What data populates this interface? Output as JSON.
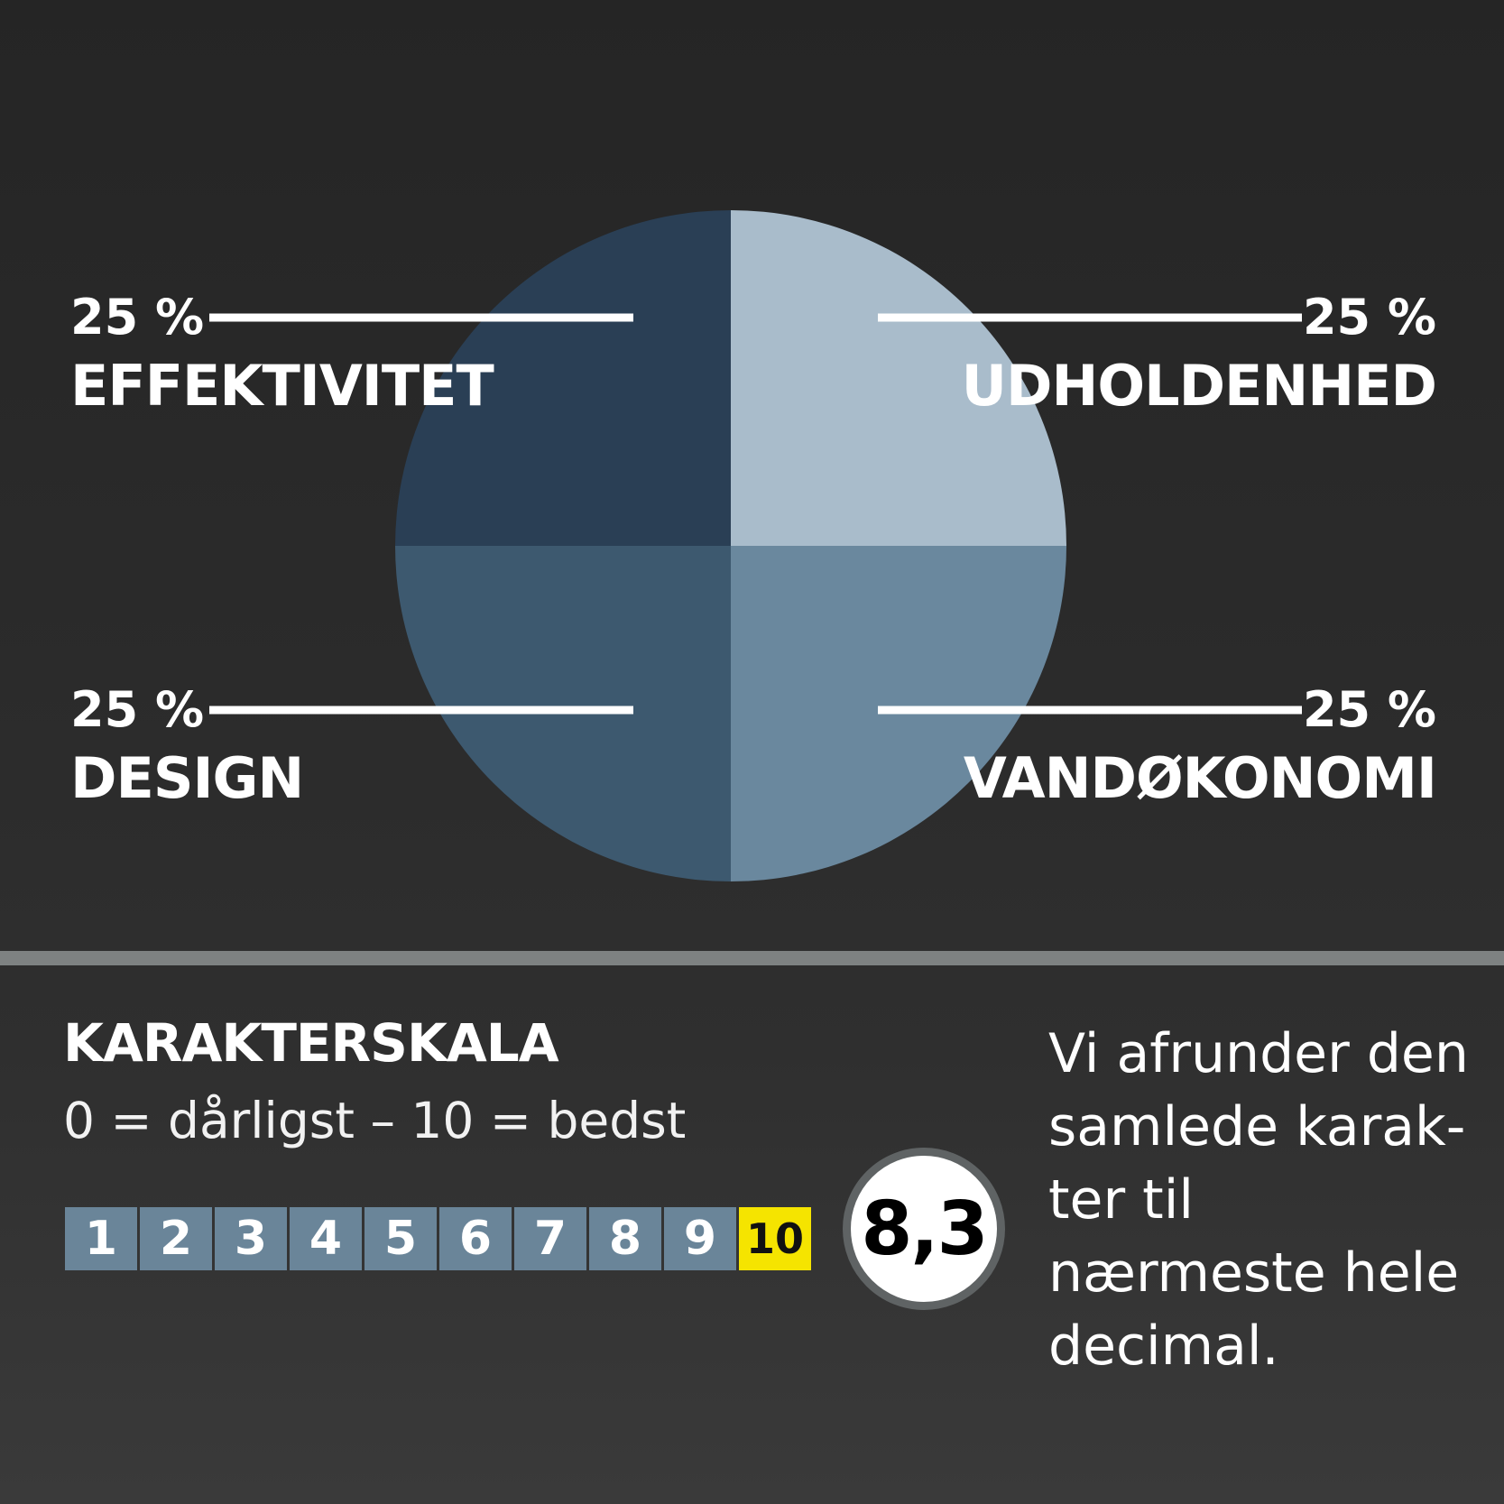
{
  "chart_data": {
    "type": "pie",
    "slices": [
      {
        "label": "EFFEKTIVITET",
        "value": 25,
        "value_text": "25 %",
        "color": "#a9bccb"
      },
      {
        "label": "UDHOLDENHED",
        "value": 25,
        "value_text": "25 %",
        "color": "#6a889e"
      },
      {
        "label": "VANDØKONOMI",
        "value": 25,
        "value_text": "25 %",
        "color": "#3d596f"
      },
      {
        "label": "DESIGN",
        "value": 25,
        "value_text": "25 %",
        "color": "#2a3f55"
      }
    ]
  },
  "scale": {
    "title": "KARAKTERSKALA",
    "subtitle": "0 = dårligst – 10 = bedst",
    "steps": [
      "1",
      "2",
      "3",
      "4",
      "5",
      "6",
      "7",
      "8",
      "9",
      "10"
    ],
    "highlight": "10",
    "step_color": "#6a8599",
    "highlight_color": "#f5e400"
  },
  "score": "8,3",
  "note": "Vi afrunder den samlede karak-ter til nærmeste hele decimal."
}
